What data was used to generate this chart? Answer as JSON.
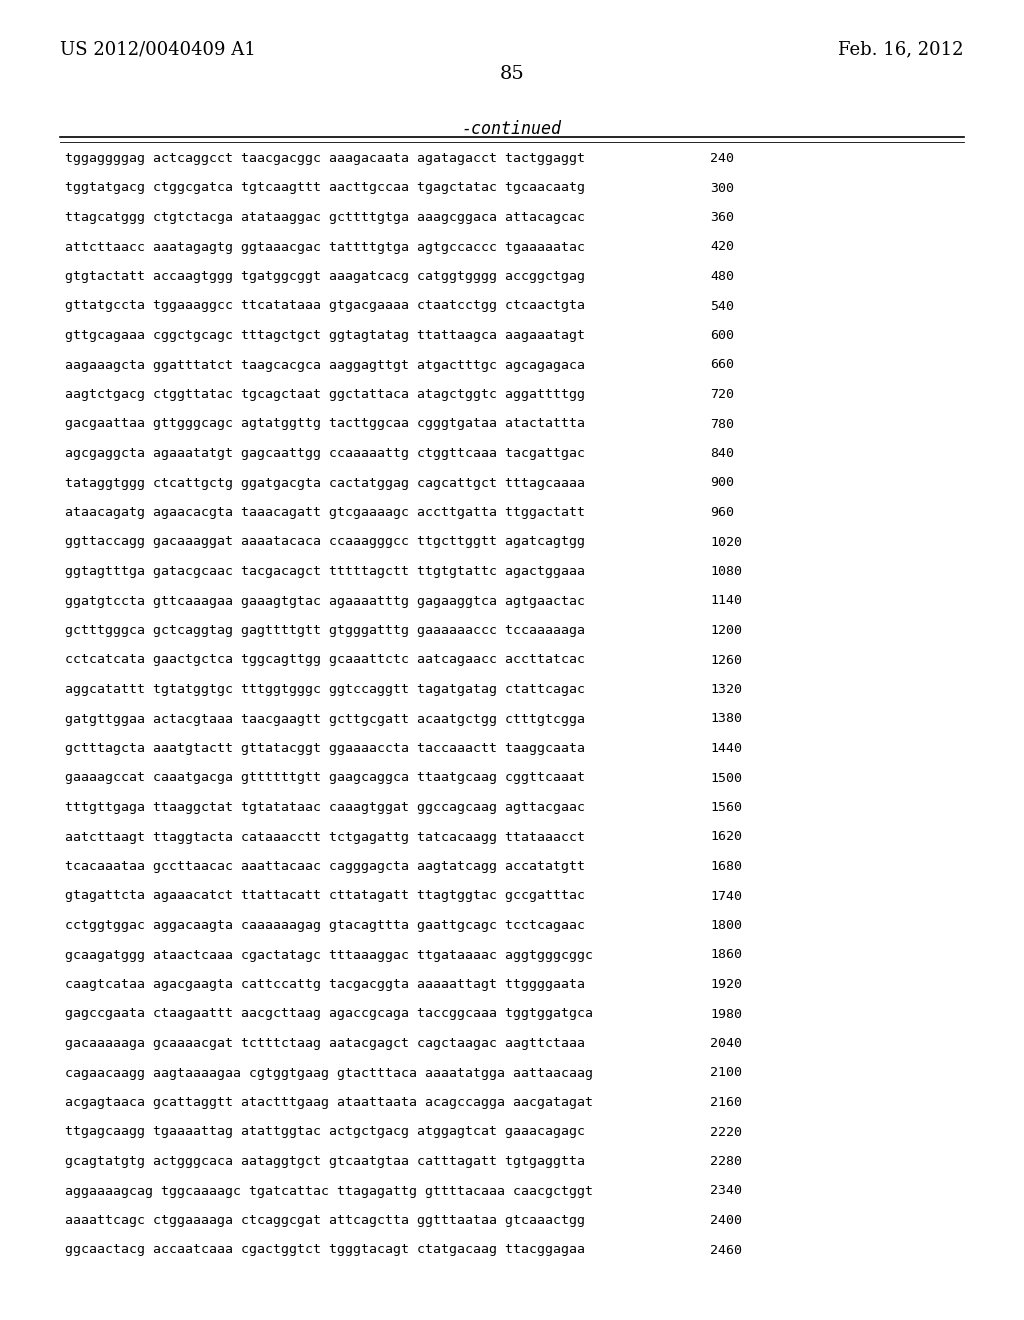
{
  "header_left": "US 2012/0040409 A1",
  "header_right": "Feb. 16, 2012",
  "page_number": "85",
  "continued_label": "-continued",
  "background_color": "#ffffff",
  "text_color": "#000000",
  "font_size_header": 13,
  "font_size_page": 14,
  "font_size_continued": 12,
  "font_size_sequence": 9.5,
  "sequence_lines": [
    [
      "tggaggggag actcaggcct taacgacggc aaagacaata agatagacct tactggaggt",
      "240"
    ],
    [
      "tggtatgacg ctggcgatca tgtcaagttt aacttgccaa tgagctatac tgcaacaatg",
      "300"
    ],
    [
      "ttagcatggg ctgtctacga atataaggac gcttttgtga aaagcggaca attacagcac",
      "360"
    ],
    [
      "attcttaacc aaatagagtg ggtaaacgac tattttgtga agtgccaccc tgaaaaatac",
      "420"
    ],
    [
      "gtgtactatt accaagtggg tgatggcggt aaagatcacg catggtgggg accggctgag",
      "480"
    ],
    [
      "gttatgccta tggaaaggcc ttcatataaa gtgacgaaaa ctaatcctgg ctcaactgta",
      "540"
    ],
    [
      "gttgcagaaa cggctgcagc tttagctgct ggtagtatag ttattaagca aagaaatagt",
      "600"
    ],
    [
      "aagaaagcta ggatttatct taagcacgca aaggagttgt atgactttgc agcagagaca",
      "660"
    ],
    [
      "aagtctgacg ctggttatac tgcagctaat ggctattaca atagctggtc aggattttgg",
      "720"
    ],
    [
      "gacgaattaa gttgggcagc agtatggttg tacttggcaa cgggtgataa atactattta",
      "780"
    ],
    [
      "agcgaggcta agaaatatgt gagcaattgg ccaaaaattg ctggttcaaa tacgattgac",
      "840"
    ],
    [
      "tataggtggg ctcattgctg ggatgacgta cactatggag cagcattgct tttagcaaaa",
      "900"
    ],
    [
      "ataacagatg agaacacgta taaacagatt gtcgaaaagc accttgatta ttggactatt",
      "960"
    ],
    [
      "ggttaccagg gacaaaggat aaaatacaca ccaaagggcc ttgcttggtt agatcagtgg",
      "1020"
    ],
    [
      "ggtagtttga gatacgcaac tacgacagct tttttagctt ttgtgtattc agactggaaa",
      "1080"
    ],
    [
      "ggatgtccta gttcaaagaa gaaagtgtac agaaaatttg gagaaggtca agtgaactac",
      "1140"
    ],
    [
      "gctttgggca gctcaggtag gagttttgtt gtgggatttg gaaaaaaccc tccaaaaaga",
      "1200"
    ],
    [
      "cctcatcata gaactgctca tggcagttgg gcaaattctc aatcagaacc accttatcac",
      "1260"
    ],
    [
      "aggcatattt tgtatggtgc tttggtgggc ggtccaggtt tagatgatag ctattcagac",
      "1320"
    ],
    [
      "gatgttggaa actacgtaaa taacgaagtt gcttgcgatt acaatgctgg ctttgtcgga",
      "1380"
    ],
    [
      "gctttagcta aaatgtactt gttatacggt ggaaaaccta taccaaactt taaggcaata",
      "1440"
    ],
    [
      "gaaaagccat caaatgacga gttttttgtt gaagcaggca ttaatgcaag cggttcaaat",
      "1500"
    ],
    [
      "tttgttgaga ttaaggctat tgtatataac caaagtggat ggccagcaag agttacgaac",
      "1560"
    ],
    [
      "aatcttaagt ttaggtacta cataaacctt tctgagattg tatcacaagg ttataaacct",
      "1620"
    ],
    [
      "tcacaaataa gccttaacac aaattacaac cagggagcta aagtatcagg accatatgtt",
      "1680"
    ],
    [
      "gtagattcta agaaacatct ttattacatt cttatagatt ttagtggtac gccgatttac",
      "1740"
    ],
    [
      "cctggtggac aggacaagta caaaaaagag gtacagttta gaattgcagc tcctcagaac",
      "1800"
    ],
    [
      "gcaagatggg ataactcaaa cgactatagc tttaaaggac ttgataaaac aggtgggcggc",
      "1860"
    ],
    [
      "caagtcataa agacgaagta cattccattg tacgacggta aaaaattagt ttggggaata",
      "1920"
    ],
    [
      "gagccgaata ctaagaattt aacgcttaag agaccgcaga taccggcaaa tggtggatgca",
      "1980"
    ],
    [
      "gacaaaaaga gcaaaacgat tctttctaag aatacgagct cagctaagac aagttctaaa",
      "2040"
    ],
    [
      "cagaacaagg aagtaaaagaa cgtggtgaag gtactttaca aaaatatgga aattaacaag",
      "2100"
    ],
    [
      "acgagtaaca gcattaggtt atactttgaag ataattaata acagccagga aacgatagat",
      "2160"
    ],
    [
      "ttgagcaagg tgaaaattag atattggtac actgctgacg atggagtcat gaaacagagc",
      "2220"
    ],
    [
      "gcagtatgtg actgggcaca aataggtgct gtcaatgtaa catttagatt tgtgaggtta",
      "2280"
    ],
    [
      "aggaaaagcag tggcaaaagc tgatcattac ttagagattg gttttacaaa caacgctggt",
      "2340"
    ],
    [
      "aaaattcagc ctggaaaaga ctcaggcgat attcagctta ggtttaataa gtcaaactgg",
      "2400"
    ],
    [
      "ggcaactacg accaatcaaa cgactggtct tgggtacagt ctatgacaag ttacggagaa",
      "2460"
    ]
  ]
}
